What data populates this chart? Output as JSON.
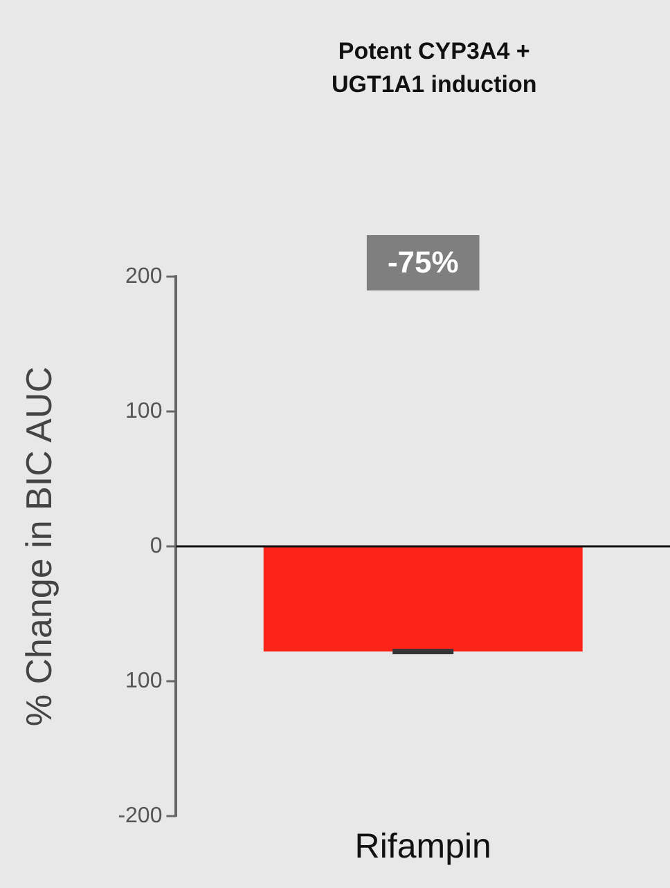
{
  "chart_data": {
    "type": "bar",
    "title": "Potent CYP3A4 +\nUGT1A1 induction",
    "ylabel": "% Change in BIC AUC",
    "categories": [
      "Rifampin"
    ],
    "values": [
      -78
    ],
    "errors": [
      1
    ],
    "color": "#fc2318",
    "ylim": [
      -200,
      200
    ],
    "yticks": [
      -200,
      {
        "value": -100,
        "label": "100"
      },
      0,
      100,
      200
    ],
    "annotations": [
      "-75%"
    ],
    "legend": false
  }
}
